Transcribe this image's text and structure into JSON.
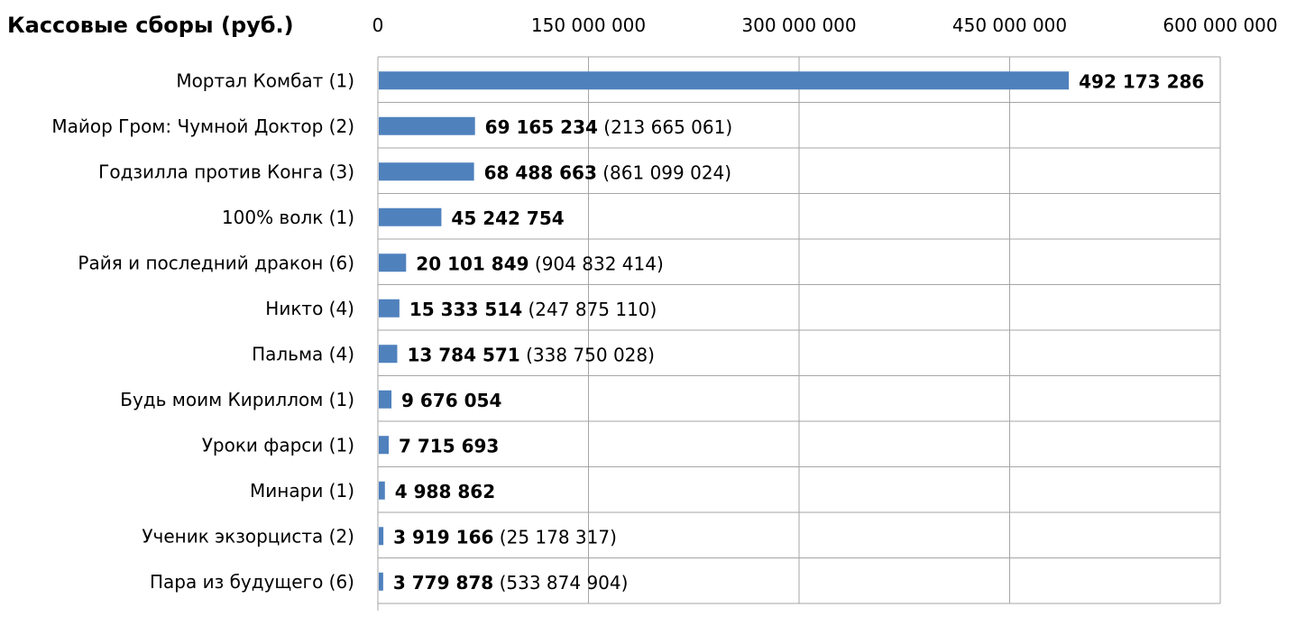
{
  "chart_data": {
    "type": "bar",
    "orientation": "horizontal",
    "title": "Кассовые сборы (руб.)",
    "xlabel": "",
    "ylabel": "",
    "xlim": [
      0,
      600000000
    ],
    "x_ticks": [
      "0",
      "150 000 000",
      "300 000 000",
      "450 000 000",
      "600 000 000"
    ],
    "x_tick_values": [
      0,
      150000000,
      300000000,
      450000000,
      600000000
    ],
    "axis_position": "top",
    "grid": true,
    "bar_color": "#4F81BD",
    "categories": [
      "Мортал Комбат (1)",
      "Майор Гром: Чумной Доктор (2)",
      "Годзилла против Конга (3)",
      "100% волк (1)",
      "Райя и последний дракон (6)",
      "Никто (4)",
      "Пальма (4)",
      "Будь моим Кириллом (1)",
      "Уроки фарси (1)",
      "Минари (1)",
      "Ученик экзорциста (2)",
      "Пара из будущего (6)"
    ],
    "values": [
      492173286,
      69165234,
      68488663,
      45242754,
      20101849,
      15333514,
      13784571,
      9676054,
      7715693,
      4988862,
      3919166,
      3779878
    ],
    "value_labels": [
      "492 173 286",
      "69 165 234",
      "68 488 663",
      "45 242 754",
      "20 101 849",
      "15 333 514",
      "13 784 571",
      "9 676 054",
      "7 715 693",
      "4 988 862",
      "3 919 166",
      "3 779 878"
    ],
    "total_labels": [
      "",
      "(213 665 061)",
      "(861 099 024)",
      "",
      "(904 832 414)",
      "(247 875 110)",
      "(338 750 028)",
      "",
      "",
      "",
      "(25 178 317)",
      "(533 874 904)"
    ]
  }
}
